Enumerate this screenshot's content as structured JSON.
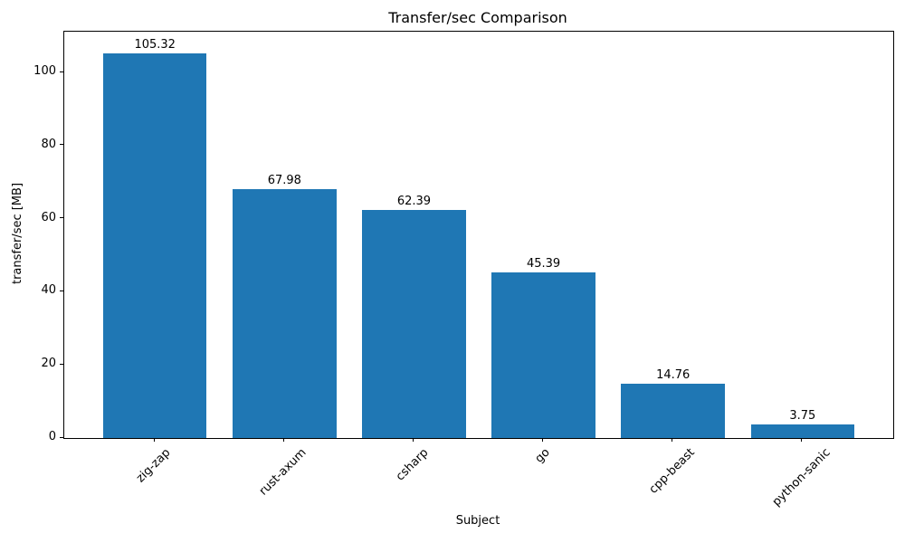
{
  "chart_data": {
    "type": "bar",
    "title": "Transfer/sec Comparison",
    "xlabel": "Subject",
    "ylabel": "transfer/sec [MB]",
    "categories": [
      "zig-zap",
      "rust-axum",
      "csharp",
      "go",
      "cpp-beast",
      "python-sanic"
    ],
    "values": [
      105.32,
      67.98,
      62.39,
      45.39,
      14.76,
      3.75
    ],
    "value_labels": [
      "105.32",
      "67.98",
      "62.39",
      "45.39",
      "14.76",
      "3.75"
    ],
    "yticks": [
      0,
      20,
      40,
      60,
      80,
      100
    ],
    "ylim": [
      0,
      111.14
    ],
    "x_tick_rotation_deg": 45,
    "bar_color": "#1f77b4",
    "text_color": "#000000",
    "grid": false,
    "legend": "none"
  }
}
